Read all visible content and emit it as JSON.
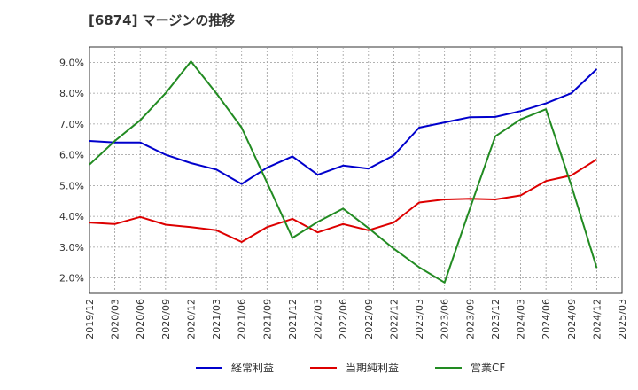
{
  "title": "[6874]  マージンの推移",
  "chart_data": {
    "type": "line",
    "title": "[6874]  マージンの推移",
    "xlabel": "",
    "ylabel": "",
    "x": [
      "2019/12",
      "2020/03",
      "2020/06",
      "2020/09",
      "2020/12",
      "2021/03",
      "2021/06",
      "2021/09",
      "2021/12",
      "2022/03",
      "2022/06",
      "2022/09",
      "2022/12",
      "2023/03",
      "2023/06",
      "2023/09",
      "2023/12",
      "2024/03",
      "2024/06",
      "2024/09",
      "2024/12"
    ],
    "x_ticks": [
      "2019/12",
      "2020/03",
      "2020/06",
      "2020/09",
      "2020/12",
      "2021/03",
      "2021/06",
      "2021/09",
      "2021/12",
      "2022/03",
      "2022/06",
      "2022/09",
      "2022/12",
      "2023/03",
      "2023/06",
      "2023/09",
      "2023/12",
      "2024/03",
      "2024/06",
      "2024/09",
      "2024/12",
      "2025/03"
    ],
    "ylim": [
      1.5,
      9.5
    ],
    "y_ticks": [
      2.0,
      3.0,
      4.0,
      5.0,
      6.0,
      7.0,
      8.0,
      9.0
    ],
    "y_tick_labels": [
      "2.0%",
      "3.0%",
      "4.0%",
      "5.0%",
      "6.0%",
      "7.0%",
      "8.0%",
      "9.0%"
    ],
    "grid": true,
    "legend_position": "bottom",
    "series": [
      {
        "name": "経常利益",
        "color": "#0000cc",
        "values": [
          6.45,
          6.4,
          6.4,
          6.0,
          5.73,
          5.52,
          5.05,
          5.58,
          5.95,
          5.35,
          5.65,
          5.55,
          5.98,
          6.88,
          7.05,
          7.22,
          7.23,
          7.42,
          7.67,
          8.0,
          8.78
        ]
      },
      {
        "name": "当期純利益",
        "color": "#dd0000",
        "values": [
          3.8,
          3.75,
          3.98,
          3.73,
          3.65,
          3.55,
          3.17,
          3.65,
          3.92,
          3.48,
          3.75,
          3.55,
          3.8,
          4.45,
          4.55,
          4.57,
          4.55,
          4.68,
          5.15,
          5.33,
          5.85
        ]
      },
      {
        "name": "営業CF",
        "color": "#228b22",
        "values": [
          5.68,
          6.45,
          7.12,
          8.0,
          9.03,
          8.0,
          6.88,
          5.1,
          3.3,
          3.82,
          4.25,
          3.62,
          2.95,
          2.35,
          1.85,
          4.25,
          6.6,
          7.15,
          7.48,
          5.0,
          2.33
        ]
      }
    ]
  }
}
